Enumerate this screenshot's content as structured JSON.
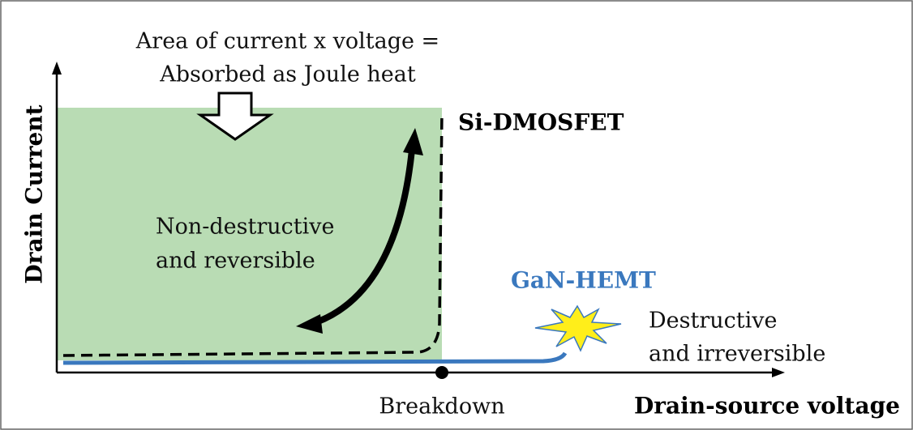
{
  "annotation": {
    "lines": [
      "Area of current x voltage =",
      "Absorbed as Joule heat"
    ]
  },
  "y_axis_label": "Drain Current",
  "x_axis_label": "Drain-source voltage",
  "breakdown_label": "Breakdown",
  "si_label": "Si-DMOSFET",
  "gan_label": "GaN-HEMT",
  "safe_region": {
    "lines": [
      "Non-destructive",
      "and reversible"
    ]
  },
  "failure_region": {
    "lines": [
      "Destructive",
      "and irreversible"
    ]
  }
}
